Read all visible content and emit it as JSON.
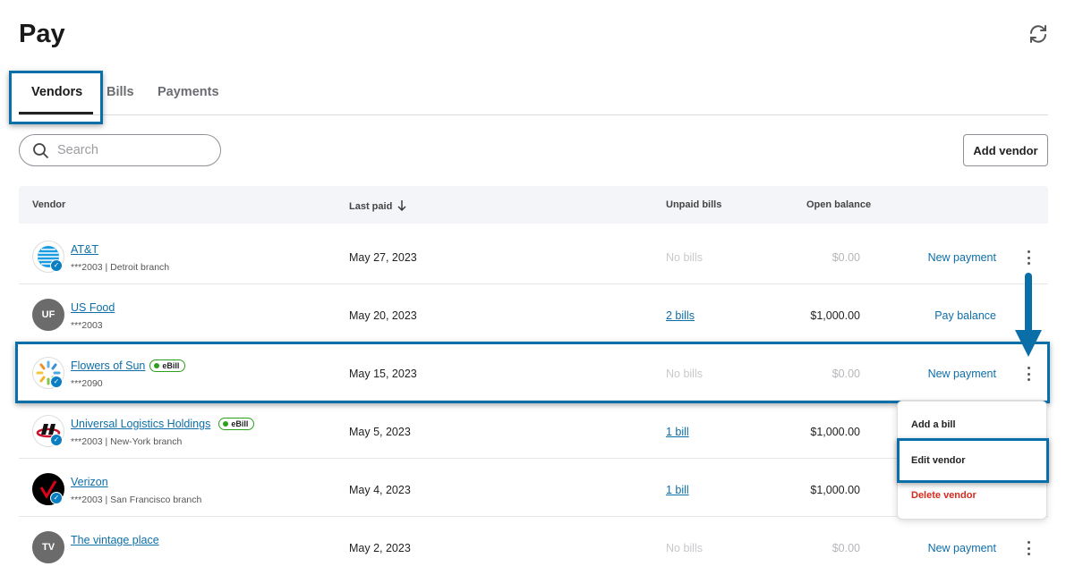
{
  "header": {
    "title": "Pay",
    "refresh_icon": "refresh-icon"
  },
  "tabs": [
    {
      "label": "Vendors",
      "active": true
    },
    {
      "label": "Bills"
    },
    {
      "label": "Payments"
    }
  ],
  "search": {
    "placeholder": "Search",
    "value": ""
  },
  "toolbar": {
    "add_vendor_label": "Add vendor"
  },
  "table": {
    "columns": {
      "vendor": "Vendor",
      "last_paid": "Last paid",
      "unpaid_bills": "Unpaid bills",
      "open_balance": "Open balance"
    },
    "sort": {
      "column": "Last paid",
      "direction": "descending"
    },
    "rows": [
      {
        "name": "AT&T",
        "sub": "***2003 | Detroit branch",
        "last_paid": "May 27, 2023",
        "unpaid": "No bills",
        "balance": "$0.00",
        "action": "New payment",
        "verified": true,
        "ebill": false
      },
      {
        "name": "US Food",
        "sub": "***2003",
        "initials": "UF",
        "last_paid": "May 20, 2023",
        "unpaid": "2 bills",
        "balance": "$1,000.00",
        "action": "Pay balance",
        "verified": false,
        "ebill": false
      },
      {
        "name": "Flowers of Sun",
        "ebill_label": "eBill",
        "sub": "***2090",
        "last_paid": "May 15, 2023",
        "unpaid": "No bills",
        "balance": "$0.00",
        "action": "New payment",
        "verified": true,
        "ebill": true
      },
      {
        "name": "Universal Logistics Holdings",
        "ebill_label": "eBill",
        "sub": "***2003 | New-York branch",
        "last_paid": "May 5, 2023",
        "unpaid": "1 bill",
        "balance": "$1,000.00",
        "verified": true,
        "ebill": true
      },
      {
        "name": "Verizon",
        "sub": "***2003 | San Francisco branch",
        "last_paid": "May 4, 2023",
        "unpaid": "1 bill",
        "balance": "$1,000.00",
        "verified": true,
        "ebill": false
      },
      {
        "name": "The vintage place",
        "initials": "TV",
        "last_paid": "May 2, 2023",
        "unpaid": "No bills",
        "balance": "$0.00",
        "action": "New payment"
      }
    ]
  },
  "row_menu": {
    "items": [
      "Add a bill",
      "Edit vendor",
      "Delete vendor"
    ]
  },
  "colors": {
    "accent": "#0d6ea8",
    "highlight": "#0a6ea8",
    "danger": "#d52b1e",
    "ebill": "#2ca01c"
  }
}
